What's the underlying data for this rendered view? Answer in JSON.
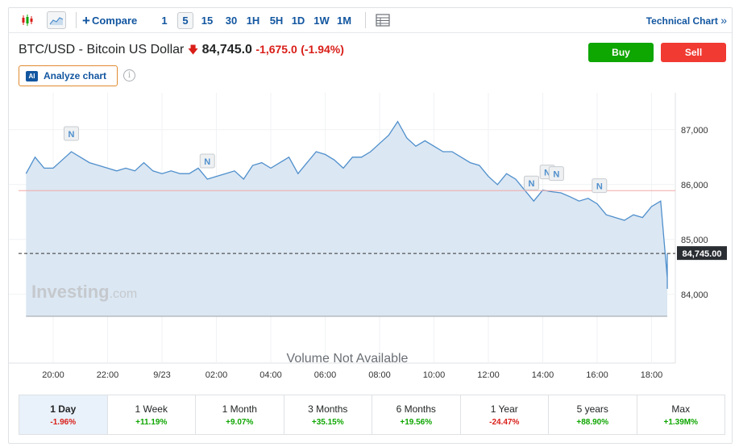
{
  "toolbar": {
    "compare_label": "Compare",
    "intervals": [
      {
        "label": "1",
        "active": false
      },
      {
        "label": "5",
        "active": true
      },
      {
        "label": "15",
        "active": false
      },
      {
        "label": "30",
        "active": false
      },
      {
        "label": "1H",
        "active": false
      },
      {
        "label": "5H",
        "active": false
      },
      {
        "label": "1D",
        "active": false
      },
      {
        "label": "1W",
        "active": false
      },
      {
        "label": "1M",
        "active": false
      }
    ],
    "technical_chart_label": "Technical Chart",
    "technical_chart_arrow": "»"
  },
  "header": {
    "instrument": "BTC/USD - Bitcoin US Dollar",
    "price": "84,745.0",
    "change": "-1,675.0",
    "change_pct": "(-1.94%)",
    "buy_label": "Buy",
    "sell_label": "Sell",
    "analyze_badge": "AI",
    "analyze_label": "Analyze chart",
    "info_glyph": "i"
  },
  "chart_data": {
    "type": "area",
    "ylim": [
      83600,
      87600
    ],
    "y_ticks": [
      "84,000",
      "85,000",
      "86,000",
      "87,000"
    ],
    "y_tick_values": [
      84000,
      85000,
      86000,
      87000
    ],
    "x_ticks": [
      "20:00",
      "22:00",
      "9/23",
      "02:00",
      "04:00",
      "06:00",
      "08:00",
      "10:00",
      "12:00",
      "14:00",
      "16:00",
      "18:00"
    ],
    "reference_line": 85890,
    "last_price": 84745.0,
    "last_price_label": "84,745.00",
    "news_markers": [
      {
        "label": "N",
        "time": "20:40"
      },
      {
        "label": "N",
        "time": "01:40"
      },
      {
        "label": "N",
        "time": "13:35"
      },
      {
        "label": "N",
        "time": "14:10"
      },
      {
        "label": "N",
        "time": "14:30"
      },
      {
        "label": "N",
        "time": "16:05"
      }
    ],
    "series": [
      {
        "times": [
          "19:00",
          "19:20",
          "19:40",
          "20:00",
          "20:20",
          "20:40",
          "21:00",
          "21:20",
          "21:40",
          "22:00",
          "22:20",
          "22:40",
          "23:00",
          "23:20",
          "23:40",
          "00:00",
          "00:20",
          "00:40",
          "01:00",
          "01:20",
          "01:40",
          "02:00",
          "02:20",
          "02:40",
          "03:00",
          "03:20",
          "03:40",
          "04:00",
          "04:20",
          "04:40",
          "05:00",
          "05:20",
          "05:40",
          "06:00",
          "06:20",
          "06:40",
          "07:00",
          "07:20",
          "07:40",
          "08:00",
          "08:20",
          "08:40",
          "09:00",
          "09:20",
          "09:40",
          "10:00",
          "10:20",
          "10:40",
          "11:00",
          "11:20",
          "11:40",
          "12:00",
          "12:20",
          "12:40",
          "13:00",
          "13:20",
          "13:40",
          "14:00",
          "14:20",
          "14:40",
          "15:00",
          "15:20",
          "15:40",
          "16:00",
          "16:20",
          "16:40",
          "17:00",
          "17:20",
          "17:40",
          "18:00",
          "18:20",
          "18:40",
          "19:00",
          "19:20",
          "19:40"
        ],
        "values": [
          86200,
          86500,
          86300,
          86300,
          86450,
          86600,
          86500,
          86400,
          86350,
          86300,
          86250,
          86300,
          86250,
          86400,
          86250,
          86200,
          86250,
          86200,
          86200,
          86300,
          86100,
          86150,
          86200,
          86250,
          86100,
          86350,
          86400,
          86300,
          86400,
          86500,
          86200,
          86400,
          86600,
          86550,
          86450,
          86300,
          86500,
          86500,
          86600,
          86750,
          86900,
          87150,
          86850,
          86700,
          86800,
          86700,
          86600,
          86600,
          86500,
          86400,
          86350,
          86150,
          86000,
          86200,
          86100,
          85900,
          85700,
          85900,
          85870,
          85850,
          85780,
          85700,
          85750,
          85650,
          85450,
          85400,
          85350,
          85450,
          85400,
          85600,
          85700,
          84300,
          84100,
          84500,
          84745
        ]
      }
    ]
  },
  "watermark": {
    "brand": "Investing",
    "suffix": ".com"
  },
  "volume_note": "Volume Not Available",
  "periods": [
    {
      "label": "1 Day",
      "value": "-1.96%",
      "dir": "neg",
      "active": true
    },
    {
      "label": "1 Week",
      "value": "+11.19%",
      "dir": "pos",
      "active": false
    },
    {
      "label": "1 Month",
      "value": "+9.07%",
      "dir": "pos",
      "active": false
    },
    {
      "label": "3 Months",
      "value": "+35.15%",
      "dir": "pos",
      "active": false
    },
    {
      "label": "6 Months",
      "value": "+19.56%",
      "dir": "pos",
      "active": false
    },
    {
      "label": "1 Year",
      "value": "-24.47%",
      "dir": "neg",
      "active": false
    },
    {
      "label": "5 years",
      "value": "+88.90%",
      "dir": "pos",
      "active": false
    },
    {
      "label": "Max",
      "value": "+1.39M%",
      "dir": "pos",
      "active": false
    }
  ],
  "colors": {
    "line": "#4f8fcc",
    "area": "#dbe7f3",
    "reference": "#f2a9a6",
    "up": "#0ea600",
    "down": "#d91e18",
    "link": "#1256a0"
  }
}
